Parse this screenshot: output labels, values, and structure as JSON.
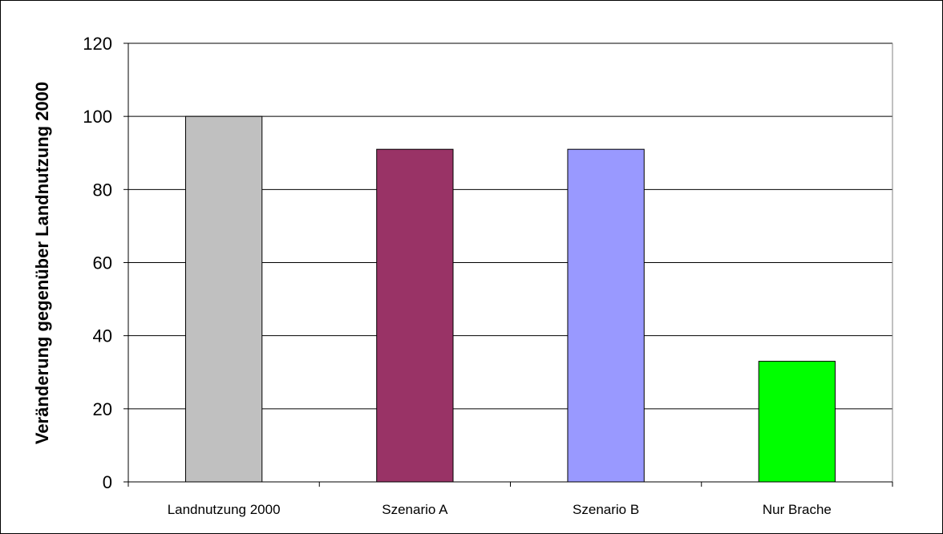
{
  "chart_data": {
    "type": "bar",
    "title": "",
    "xlabel": "",
    "ylabel": "Veränderung gegenüber Landnutzung 2000",
    "categories": [
      "Landnutzung 2000",
      "Szenario A",
      "Szenario B",
      "Nur Brache"
    ],
    "values": [
      100,
      91,
      91,
      33
    ],
    "colors": [
      "#c0c0c0",
      "#993366",
      "#9999ff",
      "#00ff00"
    ],
    "ylim": [
      0,
      120
    ],
    "yticks": [
      0,
      20,
      40,
      60,
      80,
      100,
      120
    ],
    "ytick_labels": [
      "0",
      "20",
      "40",
      "60",
      "80",
      "100",
      "120"
    ],
    "grid": true,
    "legend": "none",
    "plot_background": "#ffffff",
    "gridline_color": "#000000"
  }
}
